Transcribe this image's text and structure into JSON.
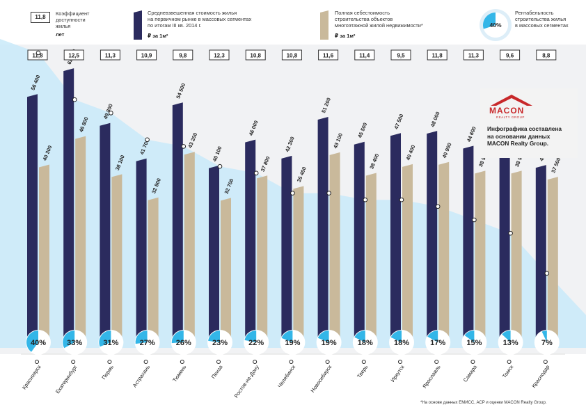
{
  "legend": {
    "affordability": {
      "label": "Коэффициент\nдоступности\nжилья",
      "unit": "лет",
      "sample": "11,8"
    },
    "price": {
      "label": "Средневзвешенная стоимость жилья\nна первичном рынке в массовых сегментах\nпо итогам III кв. 2014 г.",
      "unit": "₽ за 1м²",
      "color": "#2b2b5e"
    },
    "cost": {
      "label": "Полная себестоимость\nстроительства объектов\nмногоэтажной жилой недвижимости*",
      "unit": "₽ за 1м²",
      "color": "#c9b99b"
    },
    "profitability": {
      "label": "Рентабельность\nстроительства жилья\nв массовых сегментах",
      "sample": "40%",
      "color": "#33b6e8"
    }
  },
  "macon": {
    "logo": "MACON",
    "logo_sub": "REALTY GROUP",
    "note": "Инфографика составлена\nна основании данных\nMACON Realty Group."
  },
  "footnote": "*На основе данных ЕМИСС, АСР и оценки MACON Realty Group.",
  "chart_data": {
    "type": "bar",
    "categories": [
      "Красноярск",
      "Екатеринбург",
      "Пермь",
      "Астрахань",
      "Тюмень",
      "Пенза",
      "Ростов-на-Дону",
      "Челябинск",
      "Новосибирск",
      "Тверь",
      "Иркутск",
      "Ярославль",
      "Самара",
      "Томск",
      "Краснодар"
    ],
    "affordability_years": [
      "11,8",
      "12,5",
      "11,3",
      "10,9",
      "9,8",
      "12,3",
      "10,8",
      "10,8",
      "11,6",
      "11,4",
      "9,5",
      "11,8",
      "11,3",
      "9,6",
      "8,8"
    ],
    "series": [
      {
        "name": "Средневзвешенная стоимость жилья",
        "values": [
          56400,
          62300,
          49800,
          41700,
          54500,
          40100,
          46000,
          42300,
          51200,
          45500,
          47500,
          48000,
          44600,
          44100,
          40200
        ],
        "labels": [
          "56 400",
          "62 300",
          "49 800",
          "41 700",
          "54 500",
          "40 100",
          "46 000",
          "42 300",
          "51 200",
          "45 500",
          "47 500",
          "48 000",
          "44 600",
          "44 100",
          "40 200"
        ]
      },
      {
        "name": "Полная себестоимость строительства",
        "values": [
          40300,
          46800,
          38100,
          32800,
          43200,
          32700,
          37800,
          35400,
          43100,
          38400,
          40400,
          40900,
          38900,
          38900,
          37500
        ],
        "labels": [
          "40 300",
          "46 800",
          "38 100",
          "32 800",
          "43 200",
          "32 700",
          "37 800",
          "35 400",
          "43 100",
          "38 400",
          "40 400",
          "40 900",
          "38 900",
          "38 900",
          "37 500"
        ]
      }
    ],
    "profitability_pct": [
      40,
      33,
      31,
      27,
      26,
      23,
      22,
      19,
      19,
      18,
      18,
      17,
      15,
      13,
      7
    ],
    "profitability_labels": [
      "40%",
      "33%",
      "31%",
      "27%",
      "26%",
      "23%",
      "22%",
      "19%",
      "19%",
      "18%",
      "18%",
      "17%",
      "15%",
      "13%",
      "7%"
    ],
    "ylim": [
      0,
      70000
    ]
  }
}
